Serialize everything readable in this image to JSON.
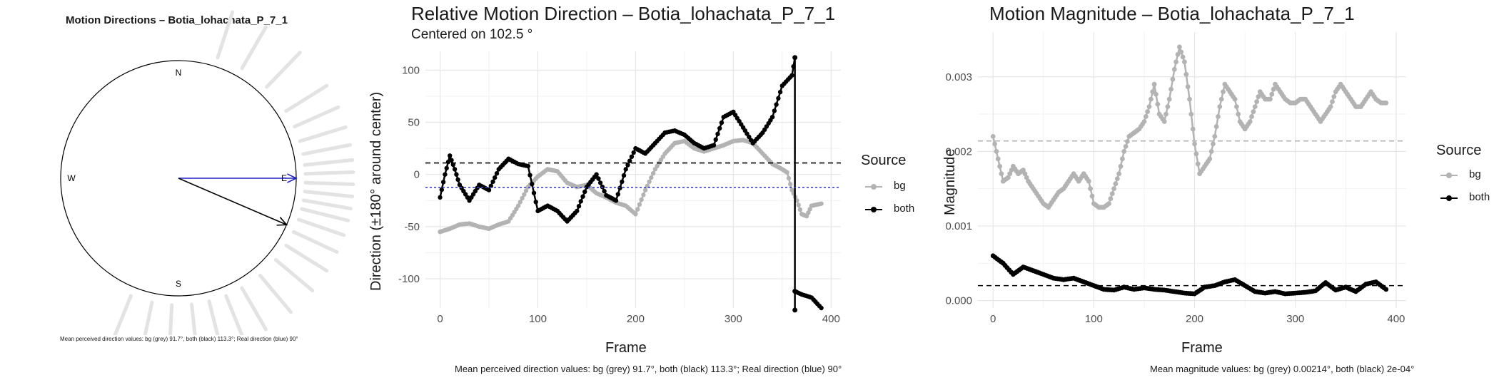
{
  "chart_data": [
    {
      "type": "polar",
      "title": "Motion Directions – Botia_lohachata_P_7_1",
      "compass_labels": [
        "N",
        "E",
        "S",
        "W"
      ],
      "arrows": [
        {
          "name": "Real direction",
          "angle_deg": 90,
          "color": "#2020c0"
        },
        {
          "name": "both",
          "angle_deg": 113.3,
          "color": "#000000"
        }
      ],
      "perceived_ray_angles_deg": [
        18,
        30,
        44,
        58,
        66,
        73,
        79,
        84,
        88,
        92,
        96,
        100,
        104,
        109,
        115,
        122,
        130,
        140,
        150,
        158,
        166,
        174,
        183,
        192,
        202
      ],
      "caption": "Mean perceived direction values: bg (grey) 91.7°, both (black) 113.3°; Real direction (blue) 90°"
    },
    {
      "type": "line",
      "title": "Relative Motion Direction – Botia_lohachata_P_7_1",
      "subtitle": "Centered on  102.5 °",
      "xlabel": "Frame",
      "ylabel": "Direction (±180° around center)",
      "xlim": [
        -15,
        410
      ],
      "ylim": [
        -128,
        118
      ],
      "xticks": [
        0,
        100,
        200,
        300,
        400
      ],
      "yticks": [
        -100,
        -50,
        0,
        50,
        100
      ],
      "legend_title": "Source",
      "legend": [
        "bg",
        "both"
      ],
      "reference_lines": [
        {
          "y": 11.0,
          "color": "#000000",
          "style": "dashed"
        },
        {
          "y": -12.5,
          "color": "#4040d0",
          "style": "dotted"
        }
      ],
      "series": [
        {
          "name": "bg",
          "color": "#b3b3b3",
          "x": [
            0,
            10,
            20,
            30,
            40,
            50,
            60,
            70,
            80,
            90,
            100,
            110,
            120,
            130,
            140,
            150,
            160,
            170,
            180,
            190,
            200,
            210,
            220,
            230,
            240,
            250,
            260,
            270,
            280,
            290,
            300,
            310,
            320,
            330,
            340,
            350,
            355,
            360,
            365,
            370,
            375,
            380,
            390
          ],
          "y": [
            -55,
            -52,
            -48,
            -47,
            -50,
            -52,
            -48,
            -45,
            -30,
            -12,
            -2,
            5,
            3,
            -8,
            -12,
            -10,
            -18,
            -22,
            -27,
            -30,
            -38,
            -15,
            5,
            20,
            30,
            32,
            25,
            22,
            25,
            28,
            32,
            33,
            30,
            20,
            10,
            5,
            2,
            -15,
            -25,
            -38,
            -40,
            -30,
            -28
          ]
        },
        {
          "name": "both",
          "color": "#000000",
          "x": [
            0,
            5,
            10,
            15,
            20,
            30,
            40,
            50,
            60,
            70,
            80,
            90,
            100,
            110,
            120,
            130,
            140,
            150,
            160,
            170,
            180,
            190,
            200,
            210,
            220,
            230,
            240,
            250,
            260,
            270,
            280,
            290,
            300,
            310,
            320,
            330,
            340,
            350,
            360,
            363,
            363,
            363,
            370,
            380,
            390
          ],
          "y": [
            -22,
            0,
            18,
            5,
            -10,
            -25,
            -10,
            -15,
            5,
            15,
            10,
            8,
            -35,
            -30,
            -35,
            -45,
            -35,
            -12,
            0,
            -20,
            -25,
            5,
            25,
            20,
            30,
            40,
            42,
            38,
            30,
            25,
            28,
            55,
            60,
            45,
            30,
            40,
            55,
            85,
            95,
            112,
            -130,
            -112,
            -115,
            -118,
            -128
          ]
        }
      ],
      "caption": "Mean perceived direction values: bg (grey) 91.7°, both (black) 113.3°; Real direction (blue) 90°"
    },
    {
      "type": "line",
      "title": "Motion Magnitude – Botia_lohachata_P_7_1",
      "xlabel": "Frame",
      "ylabel": "Magnitude",
      "xlim": [
        -15,
        410
      ],
      "ylim": [
        -0.0001,
        0.0036
      ],
      "xticks": [
        0,
        100,
        200,
        300,
        400
      ],
      "yticks": [
        0.0,
        0.001,
        0.002,
        0.003
      ],
      "ytick_labels": [
        "0.000",
        "0.001",
        "0.002",
        "0.003"
      ],
      "legend_title": "Source",
      "legend": [
        "bg",
        "both"
      ],
      "reference_lines": [
        {
          "y": 0.00214,
          "color": "#b3b3b3",
          "style": "dashed"
        },
        {
          "y": 0.0002,
          "color": "#000000",
          "style": "dashed"
        }
      ],
      "series": [
        {
          "name": "bg",
          "color": "#b3b3b3",
          "x": [
            0,
            5,
            10,
            15,
            20,
            25,
            30,
            35,
            40,
            45,
            50,
            55,
            60,
            65,
            70,
            75,
            80,
            85,
            90,
            95,
            100,
            105,
            110,
            115,
            120,
            125,
            130,
            135,
            140,
            145,
            150,
            155,
            160,
            165,
            170,
            175,
            180,
            185,
            190,
            195,
            200,
            205,
            210,
            215,
            220,
            225,
            230,
            235,
            240,
            245,
            250,
            255,
            260,
            265,
            270,
            275,
            280,
            285,
            290,
            295,
            300,
            305,
            310,
            315,
            320,
            325,
            330,
            335,
            340,
            345,
            350,
            355,
            360,
            365,
            370,
            375,
            380,
            385,
            390
          ],
          "y": [
            0.0022,
            0.0019,
            0.0016,
            0.00165,
            0.0018,
            0.0017,
            0.00175,
            0.0016,
            0.0015,
            0.0014,
            0.0013,
            0.00125,
            0.00135,
            0.00145,
            0.0015,
            0.0016,
            0.0017,
            0.0016,
            0.0017,
            0.0016,
            0.0013,
            0.00125,
            0.00125,
            0.0013,
            0.0015,
            0.0017,
            0.002,
            0.0022,
            0.00225,
            0.0023,
            0.0024,
            0.0026,
            0.0029,
            0.0025,
            0.0024,
            0.0027,
            0.0031,
            0.0034,
            0.0032,
            0.0027,
            0.0021,
            0.0017,
            0.0018,
            0.0019,
            0.0022,
            0.0026,
            0.0029,
            0.0028,
            0.0027,
            0.0024,
            0.0023,
            0.0024,
            0.0026,
            0.0028,
            0.0027,
            0.0027,
            0.0029,
            0.0028,
            0.0027,
            0.00265,
            0.00265,
            0.0027,
            0.0027,
            0.0026,
            0.0025,
            0.0024,
            0.0025,
            0.0026,
            0.0028,
            0.0029,
            0.0028,
            0.0027,
            0.0026,
            0.0026,
            0.0027,
            0.0028,
            0.0027,
            0.00265,
            0.00265
          ]
        },
        {
          "name": "both",
          "color": "#000000",
          "x": [
            0,
            10,
            20,
            30,
            40,
            50,
            60,
            70,
            80,
            90,
            100,
            110,
            120,
            130,
            140,
            150,
            160,
            170,
            180,
            190,
            200,
            210,
            220,
            230,
            240,
            250,
            260,
            270,
            280,
            290,
            300,
            310,
            320,
            330,
            340,
            350,
            360,
            370,
            380,
            390
          ],
          "y": [
            0.0006,
            0.0005,
            0.00035,
            0.00045,
            0.0004,
            0.00035,
            0.0003,
            0.00028,
            0.0003,
            0.00025,
            0.0002,
            0.00015,
            0.00014,
            0.00018,
            0.00015,
            0.00017,
            0.00015,
            0.00014,
            0.00012,
            0.0001,
            9e-05,
            0.00018,
            0.0002,
            0.00025,
            0.00028,
            0.0002,
            0.00012,
            0.0001,
            0.00012,
            9e-05,
            0.0001,
            0.00011,
            0.00013,
            0.00024,
            0.00014,
            0.00018,
            0.00012,
            0.00022,
            0.00025,
            0.00015
          ]
        }
      ],
      "caption": "Mean magnitude values: bg (grey) 0.00214°, both (black) 2e-04°"
    }
  ]
}
